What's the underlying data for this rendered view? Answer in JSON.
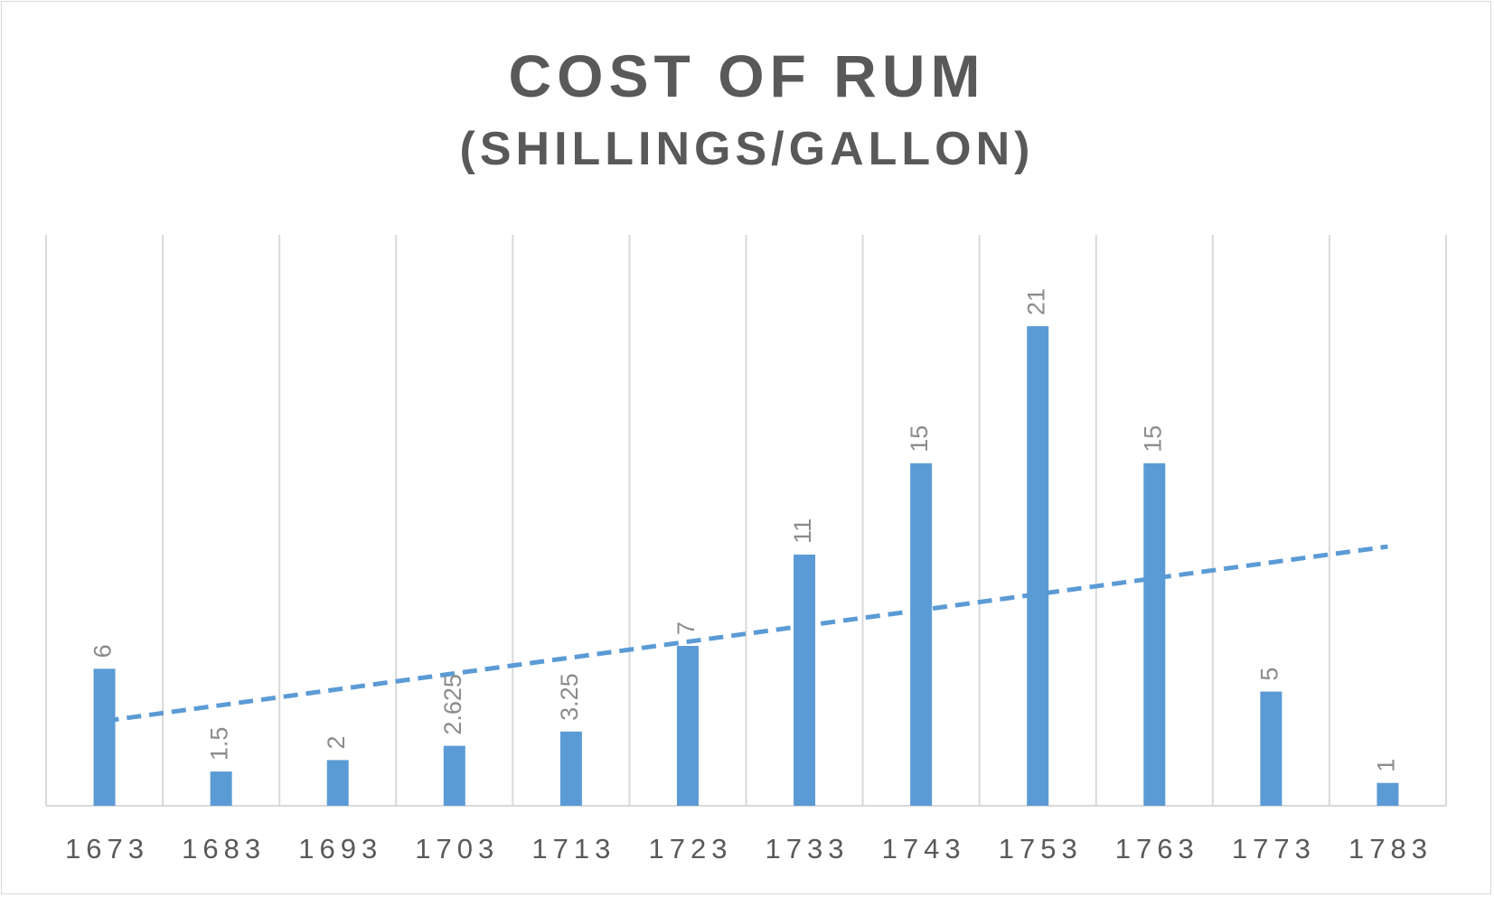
{
  "chart_data": {
    "type": "bar",
    "title": "COST OF RUM",
    "subtitle": "(SHILLINGS/GALLON)",
    "xlabel": "",
    "ylabel": "",
    "categories": [
      "1673",
      "1683",
      "1693",
      "1703",
      "1713",
      "1723",
      "1733",
      "1743",
      "1753",
      "1763",
      "1773",
      "1783"
    ],
    "series": [
      {
        "values": [
          6,
          1.5,
          2,
          2.625,
          3.25,
          7,
          11,
          15,
          21,
          15,
          5,
          1
        ],
        "data_labels": [
          "6",
          "1.5",
          "2",
          "2.625",
          "3.25",
          "7",
          "11",
          "15",
          "21",
          "15",
          "5",
          "1"
        ],
        "color": "#5b9bd5"
      }
    ],
    "trendline": {
      "type": "linear",
      "style": "dashed",
      "color": "#5b9bd5"
    },
    "ylim": [
      0,
      25
    ],
    "grid": "vertical",
    "legend": "none"
  }
}
